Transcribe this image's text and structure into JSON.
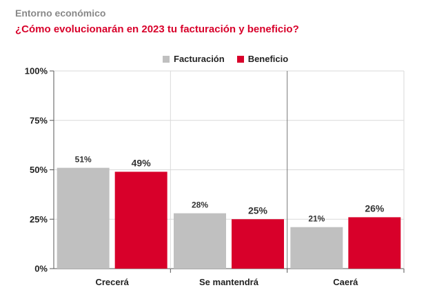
{
  "header": {
    "kicker": "Entorno económico",
    "title": "¿Cómo evolucionarán en 2023 tu facturación y beneficio?"
  },
  "colors": {
    "facturacion": "#c0c0c0",
    "beneficio": "#d8002a",
    "grid": "#d9d9d9",
    "axis": "#555555"
  },
  "chart_data": {
    "type": "bar",
    "categories": [
      "Crecerá",
      "Se mantendrá",
      "Caerá"
    ],
    "series": [
      {
        "name": "Facturación",
        "values": [
          51,
          28,
          21
        ],
        "labels": [
          "51%",
          "28%",
          "21%"
        ]
      },
      {
        "name": "Beneficio",
        "values": [
          49,
          25,
          26
        ],
        "labels": [
          "49%",
          "25%",
          "26%"
        ]
      }
    ],
    "ylim": [
      0,
      100
    ],
    "yticks": [
      0,
      25,
      50,
      75,
      100
    ],
    "ytick_labels": [
      "0%",
      "25%",
      "50%",
      "75%",
      "100%"
    ],
    "legend": "top-center",
    "grid": true
  }
}
